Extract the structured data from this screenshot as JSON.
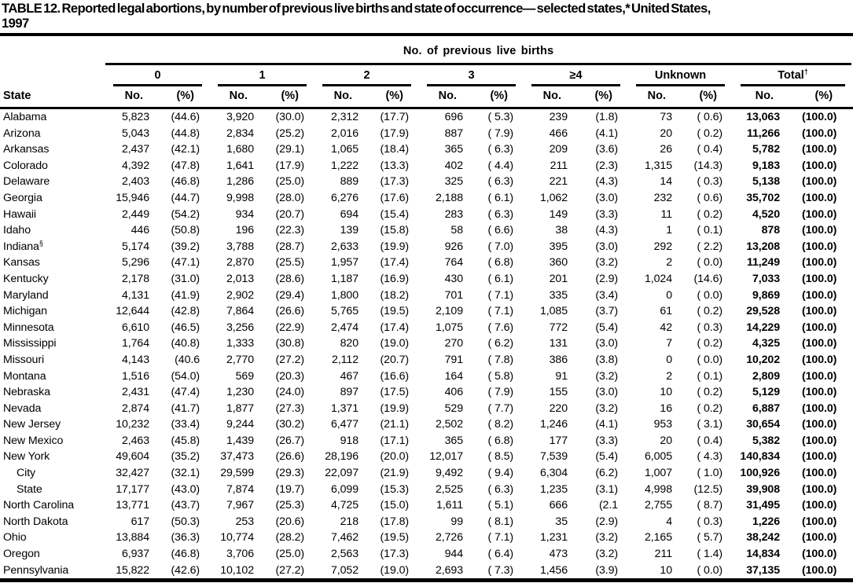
{
  "title": {
    "lines": [
      "TABLE 12. Reported legal abortions, by number of previous live births and state of occurrence— selected states,* United States,",
      "1997"
    ]
  },
  "table": {
    "spanner_label": "No. of previous live births",
    "state_header": "State",
    "subheaders": {
      "no": "No.",
      "pct": "(%)"
    },
    "groups": [
      {
        "label": "0"
      },
      {
        "label": "1"
      },
      {
        "label": "2"
      },
      {
        "label": "3"
      },
      {
        "label": "≥4"
      },
      {
        "label": "Unknown"
      },
      {
        "label": "Total",
        "sup": "†"
      }
    ],
    "rows": [
      {
        "state": "Alabama",
        "values": [
          "5,823",
          "(44.6)",
          "3,920",
          "(30.0)",
          "2,312",
          "(17.7)",
          "696",
          "( 5.3)",
          "239",
          "(1.8)",
          "73",
          "( 0.6)",
          "13,063",
          "(100.0)"
        ]
      },
      {
        "state": "Arizona",
        "values": [
          "5,043",
          "(44.8)",
          "2,834",
          "(25.2)",
          "2,016",
          "(17.9)",
          "887",
          "( 7.9)",
          "466",
          "(4.1)",
          "20",
          "( 0.2)",
          "11,266",
          "(100.0)"
        ]
      },
      {
        "state": "Arkansas",
        "values": [
          "2,437",
          "(42.1)",
          "1,680",
          "(29.1)",
          "1,065",
          "(18.4)",
          "365",
          "( 6.3)",
          "209",
          "(3.6)",
          "26",
          "( 0.4)",
          "5,782",
          "(100.0)"
        ]
      },
      {
        "state": "Colorado",
        "values": [
          "4,392",
          "(47.8)",
          "1,641",
          "(17.9)",
          "1,222",
          "(13.3)",
          "402",
          "( 4.4)",
          "211",
          "(2.3)",
          "1,315",
          "(14.3)",
          "9,183",
          "(100.0)"
        ]
      },
      {
        "state": "Delaware",
        "values": [
          "2,403",
          "(46.8)",
          "1,286",
          "(25.0)",
          "889",
          "(17.3)",
          "325",
          "( 6.3)",
          "221",
          "(4.3)",
          "14",
          "( 0.3)",
          "5,138",
          "(100.0)"
        ]
      },
      {
        "state": "Georgia",
        "values": [
          "15,946",
          "(44.7)",
          "9,998",
          "(28.0)",
          "6,276",
          "(17.6)",
          "2,188",
          "( 6.1)",
          "1,062",
          "(3.0)",
          "232",
          "( 0.6)",
          "35,702",
          "(100.0)"
        ]
      },
      {
        "state": "Hawaii",
        "values": [
          "2,449",
          "(54.2)",
          "934",
          "(20.7)",
          "694",
          "(15.4)",
          "283",
          "( 6.3)",
          "149",
          "(3.3)",
          "11",
          "( 0.2)",
          "4,520",
          "(100.0)"
        ]
      },
      {
        "state": "Idaho",
        "values": [
          "446",
          "(50.8)",
          "196",
          "(22.3)",
          "139",
          "(15.8)",
          "58",
          "( 6.6)",
          "38",
          "(4.3)",
          "1",
          "( 0.1)",
          "878",
          "(100.0)"
        ]
      },
      {
        "state": "Indiana",
        "sup": "§",
        "values": [
          "5,174",
          "(39.2)",
          "3,788",
          "(28.7)",
          "2,633",
          "(19.9)",
          "926",
          "( 7.0)",
          "395",
          "(3.0)",
          "292",
          "( 2.2)",
          "13,208",
          "(100.0)"
        ]
      },
      {
        "state": "Kansas",
        "values": [
          "5,296",
          "(47.1)",
          "2,870",
          "(25.5)",
          "1,957",
          "(17.4)",
          "764",
          "( 6.8)",
          "360",
          "(3.2)",
          "2",
          "( 0.0)",
          "11,249",
          "(100.0)"
        ]
      },
      {
        "state": "Kentucky",
        "values": [
          "2,178",
          "(31.0)",
          "2,013",
          "(28.6)",
          "1,187",
          "(16.9)",
          "430",
          "( 6.1)",
          "201",
          "(2.9)",
          "1,024",
          "(14.6)",
          "7,033",
          "(100.0)"
        ]
      },
      {
        "state": "Maryland",
        "values": [
          "4,131",
          "(41.9)",
          "2,902",
          "(29.4)",
          "1,800",
          "(18.2)",
          "701",
          "( 7.1)",
          "335",
          "(3.4)",
          "0",
          "( 0.0)",
          "9,869",
          "(100.0)"
        ]
      },
      {
        "state": "Michigan",
        "values": [
          "12,644",
          "(42.8)",
          "7,864",
          "(26.6)",
          "5,765",
          "(19.5)",
          "2,109",
          "( 7.1)",
          "1,085",
          "(3.7)",
          "61",
          "( 0.2)",
          "29,528",
          "(100.0)"
        ]
      },
      {
        "state": "Minnesota",
        "values": [
          "6,610",
          "(46.5)",
          "3,256",
          "(22.9)",
          "2,474",
          "(17.4)",
          "1,075",
          "( 7.6)",
          "772",
          "(5.4)",
          "42",
          "( 0.3)",
          "14,229",
          "(100.0)"
        ]
      },
      {
        "state": "Mississippi",
        "values": [
          "1,764",
          "(40.8)",
          "1,333",
          "(30.8)",
          "820",
          "(19.0)",
          "270",
          "( 6.2)",
          "131",
          "(3.0)",
          "7",
          "( 0.2)",
          "4,325",
          "(100.0)"
        ]
      },
      {
        "state": "Missouri",
        "values": [
          "4,143",
          "(40.6",
          "2,770",
          "(27.2)",
          "2,112",
          "(20.7)",
          "791",
          "( 7.8)",
          "386",
          "(3.8)",
          "0",
          "( 0.0)",
          "10,202",
          "(100.0)"
        ]
      },
      {
        "state": "Montana",
        "values": [
          "1,516",
          "(54.0)",
          "569",
          "(20.3)",
          "467",
          "(16.6)",
          "164",
          "( 5.8)",
          "91",
          "(3.2)",
          "2",
          "( 0.1)",
          "2,809",
          "(100.0)"
        ]
      },
      {
        "state": "Nebraska",
        "values": [
          "2,431",
          "(47.4)",
          "1,230",
          "(24.0)",
          "897",
          "(17.5)",
          "406",
          "( 7.9)",
          "155",
          "(3.0)",
          "10",
          "( 0.2)",
          "5,129",
          "(100.0)"
        ]
      },
      {
        "state": "Nevada",
        "values": [
          "2,874",
          "(41.7)",
          "1,877",
          "(27.3)",
          "1,371",
          "(19.9)",
          "529",
          "( 7.7)",
          "220",
          "(3.2)",
          "16",
          "( 0.2)",
          "6,887",
          "(100.0)"
        ]
      },
      {
        "state": "New Jersey",
        "values": [
          "10,232",
          "(33.4)",
          "9,244",
          "(30.2)",
          "6,477",
          "(21.1)",
          "2,502",
          "( 8.2)",
          "1,246",
          "(4.1)",
          "953",
          "( 3.1)",
          "30,654",
          "(100.0)"
        ]
      },
      {
        "state": "New Mexico",
        "values": [
          "2,463",
          "(45.8)",
          "1,439",
          "(26.7)",
          "918",
          "(17.1)",
          "365",
          "( 6.8)",
          "177",
          "(3.3)",
          "20",
          "( 0.4)",
          "5,382",
          "(100.0)"
        ]
      },
      {
        "state": "New York",
        "values": [
          "49,604",
          "(35.2)",
          "37,473",
          "(26.6)",
          "28,196",
          "(20.0)",
          "12,017",
          "( 8.5)",
          "7,539",
          "(5.4)",
          "6,005",
          "( 4.3)",
          "140,834",
          "(100.0)"
        ]
      },
      {
        "state": "City",
        "indent": true,
        "values": [
          "32,427",
          "(32.1)",
          "29,599",
          "(29.3)",
          "22,097",
          "(21.9)",
          "9,492",
          "( 9.4)",
          "6,304",
          "(6.2)",
          "1,007",
          "( 1.0)",
          "100,926",
          "(100.0)"
        ]
      },
      {
        "state": "State",
        "indent": true,
        "values": [
          "17,177",
          "(43.0)",
          "7,874",
          "(19.7)",
          "6,099",
          "(15.3)",
          "2,525",
          "( 6.3)",
          "1,235",
          "(3.1)",
          "4,998",
          "(12.5)",
          "39,908",
          "(100.0)"
        ]
      },
      {
        "state": "North Carolina",
        "values": [
          "13,771",
          "(43.7)",
          "7,967",
          "(25.3)",
          "4,725",
          "(15.0)",
          "1,611",
          "( 5.1)",
          "666",
          "(2.1",
          "2,755",
          "( 8.7)",
          "31,495",
          "(100.0)"
        ]
      },
      {
        "state": "North Dakota",
        "values": [
          "617",
          "(50.3)",
          "253",
          "(20.6)",
          "218",
          "(17.8)",
          "99",
          "( 8.1)",
          "35",
          "(2.9)",
          "4",
          "( 0.3)",
          "1,226",
          "(100.0)"
        ]
      },
      {
        "state": "Ohio",
        "values": [
          "13,884",
          "(36.3)",
          "10,774",
          "(28.2)",
          "7,462",
          "(19.5)",
          "2,726",
          "( 7.1)",
          "1,231",
          "(3.2)",
          "2,165",
          "( 5.7)",
          "38,242",
          "(100.0)"
        ]
      },
      {
        "state": "Oregon",
        "values": [
          "6,937",
          "(46.8)",
          "3,706",
          "(25.0)",
          "2,563",
          "(17.3)",
          "944",
          "( 6.4)",
          "473",
          "(3.2)",
          "211",
          "( 1.4)",
          "14,834",
          "(100.0)"
        ]
      },
      {
        "state": "Pennsylvania",
        "values": [
          "15,822",
          "(42.6)",
          "10,102",
          "(27.2)",
          "7,052",
          "(19.0)",
          "2,693",
          "( 7.3)",
          "1,456",
          "(3.9)",
          "10",
          "( 0.0)",
          "37,135",
          "(100.0)"
        ]
      }
    ]
  }
}
